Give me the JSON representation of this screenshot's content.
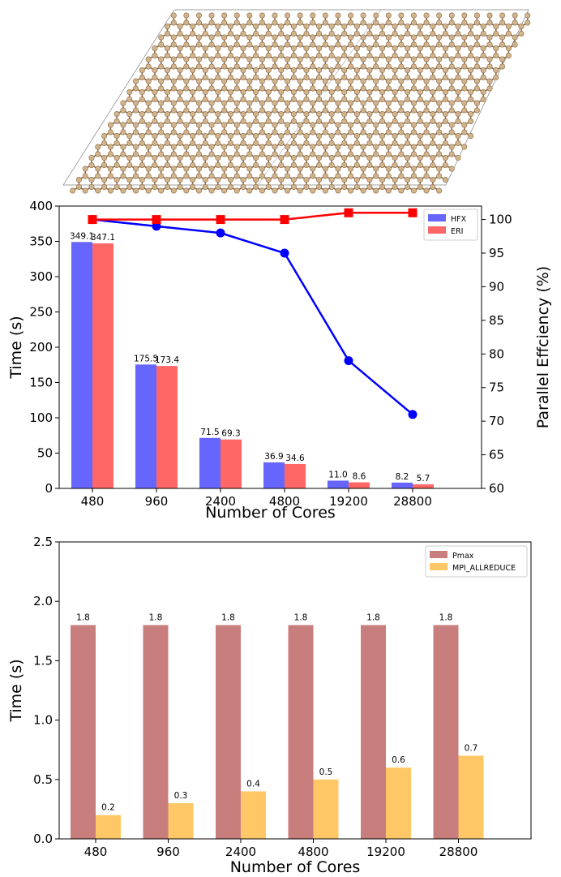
{
  "colors": {
    "hfx": "#6666ff",
    "eri": "#ff6666",
    "efficiency_hfx": "#0000ff",
    "efficiency_eri": "#ff0000",
    "pmax": "#c97e7e",
    "allreduce": "#ffc766",
    "atom": "#d2b48c",
    "atom_edge": "#8c6b48",
    "cell_edge": "#808080"
  },
  "chart_data": [
    {
      "type": "bar",
      "panel": "top",
      "categories": [
        "480",
        "960",
        "2400",
        "4800",
        "19200",
        "28800"
      ],
      "xlabel": "Number of Cores",
      "ylabel": "Time (s)",
      "ylim": [
        0,
        400
      ],
      "yticks": [
        "0",
        "50",
        "100",
        "150",
        "200",
        "250",
        "300",
        "350",
        "400"
      ],
      "series": [
        {
          "name": "HFX",
          "values": [
            349.1,
            175.5,
            71.5,
            36.9,
            11.0,
            8.2
          ],
          "labels": [
            "349.1",
            "175.5",
            "71.5",
            "36.9",
            "11.0",
            "8.2"
          ]
        },
        {
          "name": "ERI",
          "values": [
            347.1,
            173.4,
            69.3,
            34.6,
            8.6,
            5.7
          ],
          "labels": [
            "347.1",
            "173.4",
            "69.3",
            "34.6",
            "8.6",
            "5.7"
          ]
        }
      ],
      "secondary_axis": {
        "type": "line",
        "ylabel": "Parallel Effciency (%)",
        "ylim": [
          60,
          102
        ],
        "yticks": [
          "60",
          "65",
          "70",
          "75",
          "80",
          "85",
          "90",
          "95",
          "100"
        ],
        "series": [
          {
            "values": [
              100,
              99,
              98,
              95,
              79,
              71
            ],
            "marker": "circle"
          },
          {
            "values": [
              100,
              100,
              100,
              100,
              101,
              101
            ],
            "marker": "square"
          }
        ]
      },
      "legend": "top-right",
      "grid": false
    },
    {
      "type": "bar",
      "panel": "bottom",
      "categories": [
        "480",
        "960",
        "2400",
        "4800",
        "19200",
        "28800"
      ],
      "xlabel": "Number of Cores",
      "ylabel": "Time (s)",
      "ylim": [
        0,
        2.5
      ],
      "yticks": [
        "0.0",
        "0.5",
        "1.0",
        "1.5",
        "2.0",
        "2.5"
      ],
      "series": [
        {
          "name": "Pmax",
          "values": [
            1.8,
            1.8,
            1.8,
            1.8,
            1.8,
            1.8
          ],
          "labels": [
            "1.8",
            "1.8",
            "1.8",
            "1.8",
            "1.8",
            "1.8"
          ]
        },
        {
          "name": "MPI_ALLREDUCE",
          "values": [
            0.2,
            0.3,
            0.4,
            0.5,
            0.6,
            0.7
          ],
          "labels": [
            "0.2",
            "0.3",
            "0.4",
            "0.5",
            "0.6",
            "0.7"
          ]
        }
      ],
      "legend": "top-right",
      "grid": false
    }
  ]
}
